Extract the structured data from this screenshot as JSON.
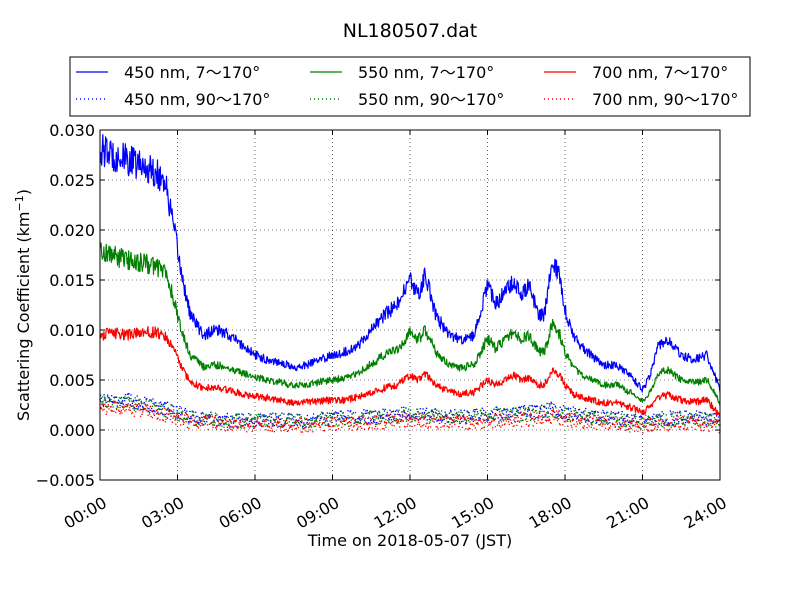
{
  "chart_data": {
    "type": "line",
    "title": "NL180507.dat",
    "xlabel": "Time on 2018-05-07 (JST)",
    "ylabel": "Scattering Coefficient (km",
    "ylabel_sup": "−1",
    "ylabel_close": ")",
    "xlim": [
      0,
      24
    ],
    "ylim": [
      -0.005,
      0.03
    ],
    "grid": true,
    "legend_position": "top, above plot",
    "x_ticks": [
      {
        "value": 0,
        "label": "00:00"
      },
      {
        "value": 3,
        "label": "03:00"
      },
      {
        "value": 6,
        "label": "06:00"
      },
      {
        "value": 9,
        "label": "09:00"
      },
      {
        "value": 12,
        "label": "12:00"
      },
      {
        "value": 15,
        "label": "15:00"
      },
      {
        "value": 18,
        "label": "18:00"
      },
      {
        "value": 21,
        "label": "21:00"
      },
      {
        "value": 24,
        "label": "24:00"
      }
    ],
    "y_ticks": [
      {
        "value": 0.03,
        "label": "0.030"
      },
      {
        "value": 0.025,
        "label": "0.025"
      },
      {
        "value": 0.02,
        "label": "0.020"
      },
      {
        "value": 0.015,
        "label": "0.015"
      },
      {
        "value": 0.01,
        "label": "0.010"
      },
      {
        "value": 0.005,
        "label": "0.005"
      },
      {
        "value": 0.0,
        "label": "0.000"
      },
      {
        "value": -0.005,
        "label": "−0.005"
      }
    ],
    "series": [
      {
        "name": "450 nm, 7～170°",
        "color": "#0000ff",
        "style": "solid",
        "x": [
          0,
          0.5,
          1,
          1.5,
          2,
          2.5,
          2.8,
          3,
          3.2,
          3.5,
          4,
          4.5,
          5,
          5.5,
          6,
          6.5,
          7,
          7.5,
          8,
          8.5,
          9,
          9.5,
          10,
          10.5,
          11,
          11.5,
          12,
          12.3,
          12.6,
          13,
          13.5,
          14,
          14.5,
          15,
          15.3,
          15.6,
          16,
          16.3,
          16.6,
          17,
          17.2,
          17.5,
          17.8,
          18,
          18.3,
          18.6,
          19,
          19.5,
          20,
          20.5,
          21,
          21.3,
          21.6,
          22,
          22.5,
          23,
          23.5,
          24
        ],
        "y": [
          0.028,
          0.0275,
          0.027,
          0.0265,
          0.026,
          0.025,
          0.021,
          0.018,
          0.015,
          0.0115,
          0.0095,
          0.01,
          0.0095,
          0.0085,
          0.0075,
          0.007,
          0.0068,
          0.0062,
          0.0065,
          0.007,
          0.0075,
          0.0078,
          0.0085,
          0.01,
          0.0115,
          0.0125,
          0.015,
          0.0135,
          0.0155,
          0.0115,
          0.0095,
          0.009,
          0.0095,
          0.0145,
          0.0125,
          0.0135,
          0.015,
          0.0135,
          0.0145,
          0.0115,
          0.0115,
          0.017,
          0.0155,
          0.012,
          0.0095,
          0.0085,
          0.0075,
          0.0065,
          0.0065,
          0.0055,
          0.004,
          0.0055,
          0.0085,
          0.009,
          0.0075,
          0.007,
          0.0075,
          0.004
        ]
      },
      {
        "name": "450 nm, 90～170°",
        "color": "#0000ff",
        "style": "dotted",
        "x": [
          0,
          1,
          2,
          2.8,
          3.5,
          5,
          6,
          8,
          10,
          11,
          12,
          13,
          14,
          15,
          16,
          17,
          17.5,
          18,
          19,
          20,
          21,
          22,
          23,
          24
        ],
        "y": [
          0.003,
          0.003,
          0.0025,
          0.002,
          0.0013,
          0.001,
          0.001,
          0.001,
          0.0013,
          0.0014,
          0.0017,
          0.0014,
          0.0013,
          0.0016,
          0.0017,
          0.0018,
          0.0022,
          0.0017,
          0.0014,
          0.0012,
          0.0009,
          0.0012,
          0.0013,
          0.0009
        ]
      },
      {
        "name": "550 nm, 7～170°",
        "color": "#008000",
        "style": "solid",
        "x": [
          0,
          0.5,
          1,
          1.5,
          2,
          2.5,
          2.8,
          3,
          3.2,
          3.5,
          4,
          4.5,
          5,
          5.5,
          6,
          6.5,
          7,
          7.5,
          8,
          8.5,
          9,
          9.5,
          10,
          10.5,
          11,
          11.5,
          12,
          12.3,
          12.6,
          13,
          13.5,
          14,
          14.5,
          15,
          15.3,
          15.6,
          16,
          16.3,
          16.6,
          17,
          17.2,
          17.5,
          17.8,
          18,
          18.3,
          18.6,
          19,
          19.5,
          20,
          20.5,
          21,
          21.3,
          21.6,
          22,
          22.5,
          23,
          23.5,
          24
        ],
        "y": [
          0.018,
          0.0175,
          0.017,
          0.0168,
          0.0165,
          0.016,
          0.0135,
          0.0115,
          0.0095,
          0.0075,
          0.0063,
          0.0065,
          0.0062,
          0.0057,
          0.0053,
          0.005,
          0.0048,
          0.0044,
          0.0045,
          0.0048,
          0.005,
          0.0052,
          0.0057,
          0.0066,
          0.0075,
          0.008,
          0.0098,
          0.009,
          0.01,
          0.0078,
          0.0065,
          0.0062,
          0.0066,
          0.0092,
          0.0082,
          0.0088,
          0.0098,
          0.009,
          0.0095,
          0.0078,
          0.0078,
          0.0105,
          0.0095,
          0.0078,
          0.0062,
          0.0057,
          0.005,
          0.0045,
          0.0045,
          0.0038,
          0.0028,
          0.0038,
          0.0057,
          0.006,
          0.005,
          0.0047,
          0.005,
          0.0027
        ]
      },
      {
        "name": "550 nm, 90～170°",
        "color": "#008000",
        "style": "dotted",
        "x": [
          0,
          1,
          2,
          2.8,
          3.5,
          5,
          6,
          8,
          10,
          11,
          12,
          13,
          14,
          15,
          16,
          17,
          17.5,
          18,
          19,
          20,
          21,
          22,
          23,
          24
        ],
        "y": [
          0.0028,
          0.0028,
          0.0023,
          0.0018,
          0.0012,
          0.0009,
          0.0009,
          0.0009,
          0.0011,
          0.0013,
          0.0015,
          0.0013,
          0.0012,
          0.0014,
          0.0015,
          0.0016,
          0.002,
          0.0015,
          0.0012,
          0.001,
          0.0008,
          0.001,
          0.0011,
          0.0008
        ]
      },
      {
        "name": "700 nm, 7～170°",
        "color": "#ff0000",
        "style": "solid",
        "x": [
          0,
          0.5,
          1,
          1.5,
          2,
          2.5,
          2.8,
          3,
          3.2,
          3.5,
          4,
          4.5,
          5,
          5.5,
          6,
          6.5,
          7,
          7.5,
          8,
          8.5,
          9,
          9.5,
          10,
          10.5,
          11,
          11.5,
          12,
          12.3,
          12.6,
          13,
          13.5,
          14,
          14.5,
          15,
          15.3,
          15.6,
          16,
          16.3,
          16.6,
          17,
          17.2,
          17.5,
          17.8,
          18,
          18.3,
          18.6,
          19,
          19.5,
          20,
          20.5,
          21,
          21.3,
          21.6,
          22,
          22.5,
          23,
          23.5,
          24
        ],
        "y": [
          0.0095,
          0.0097,
          0.0095,
          0.0097,
          0.0098,
          0.0095,
          0.0083,
          0.0072,
          0.006,
          0.0048,
          0.0042,
          0.0042,
          0.004,
          0.0036,
          0.0034,
          0.0032,
          0.003,
          0.0027,
          0.0028,
          0.0029,
          0.003,
          0.003,
          0.0033,
          0.0037,
          0.0042,
          0.0045,
          0.0055,
          0.005,
          0.0056,
          0.0045,
          0.0038,
          0.0036,
          0.0038,
          0.005,
          0.0045,
          0.0048,
          0.0055,
          0.005,
          0.0052,
          0.0045,
          0.0045,
          0.006,
          0.0055,
          0.0045,
          0.0036,
          0.0033,
          0.003,
          0.0027,
          0.0027,
          0.0023,
          0.0018,
          0.0023,
          0.0033,
          0.0035,
          0.003,
          0.0028,
          0.003,
          0.0014
        ]
      },
      {
        "name": "700 nm, 90～170°",
        "color": "#ff0000",
        "style": "dotted",
        "x": [
          0,
          1,
          2,
          2.8,
          3.5,
          5,
          6,
          8,
          10,
          11,
          12,
          13,
          14,
          15,
          16,
          17,
          17.5,
          18,
          19,
          20,
          21,
          22,
          23,
          24
        ],
        "y": [
          0.0022,
          0.0022,
          0.0018,
          0.0013,
          0.0008,
          0.0005,
          0.0005,
          0.0005,
          0.0007,
          0.0008,
          0.001,
          0.0008,
          0.0007,
          0.0009,
          0.001,
          0.0011,
          0.0014,
          0.001,
          0.0008,
          0.0006,
          0.0004,
          0.0006,
          0.0007,
          0.0004
        ]
      }
    ]
  }
}
